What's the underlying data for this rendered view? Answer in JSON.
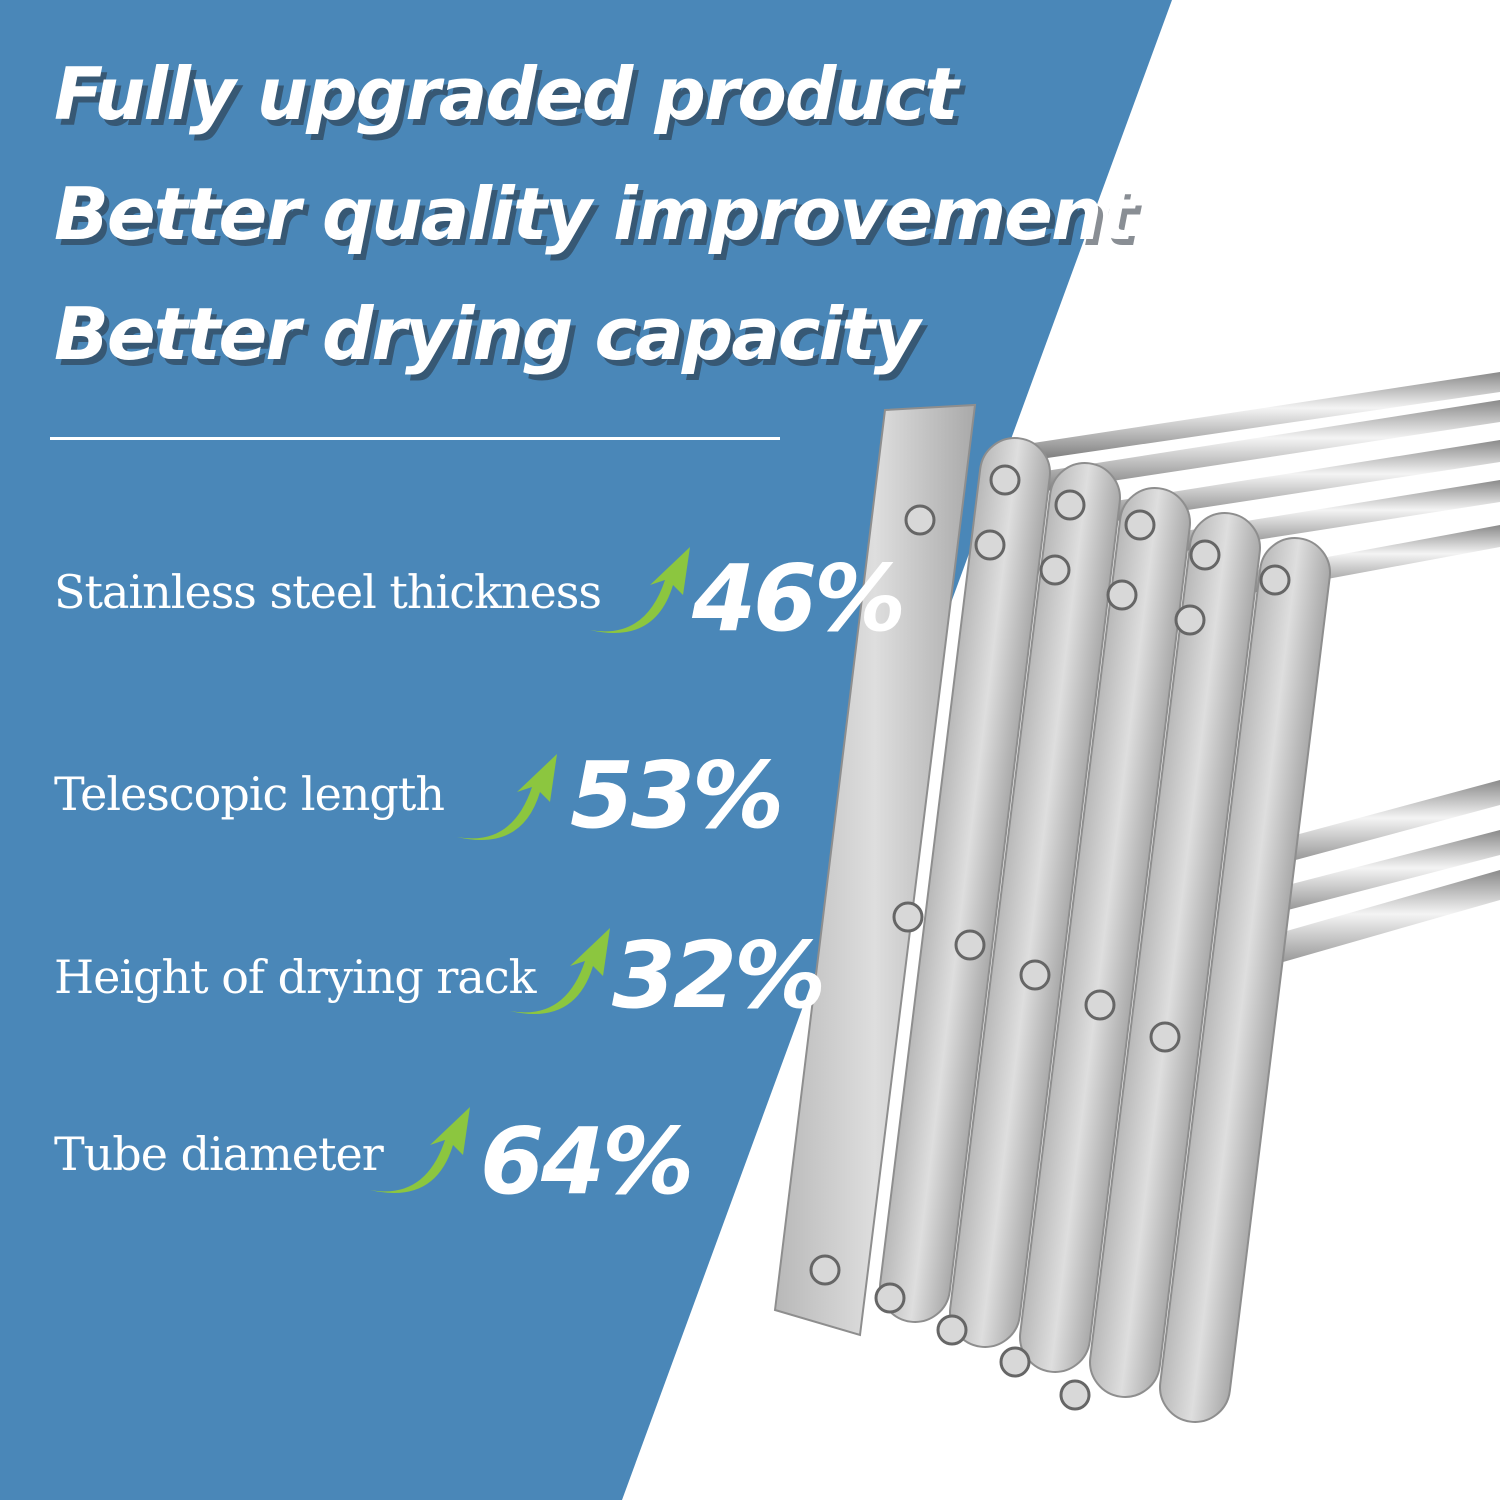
{
  "headlines": [
    "Fully upgraded product",
    "Better quality improvement",
    "Better drying capacity"
  ],
  "features": [
    {
      "label": "Stainless steel thickness",
      "value": "46%"
    },
    {
      "label": "Telescopic length",
      "value": "53%"
    },
    {
      "label": "Height of drying rack",
      "value": "32%"
    },
    {
      "label": "Tube diameter",
      "value": "64%"
    }
  ],
  "colors": {
    "background_blue": "#4a87b8",
    "arrow_green": "#8cc63f",
    "text": "#ffffff"
  },
  "icons": [
    "up-arrow-icon"
  ]
}
